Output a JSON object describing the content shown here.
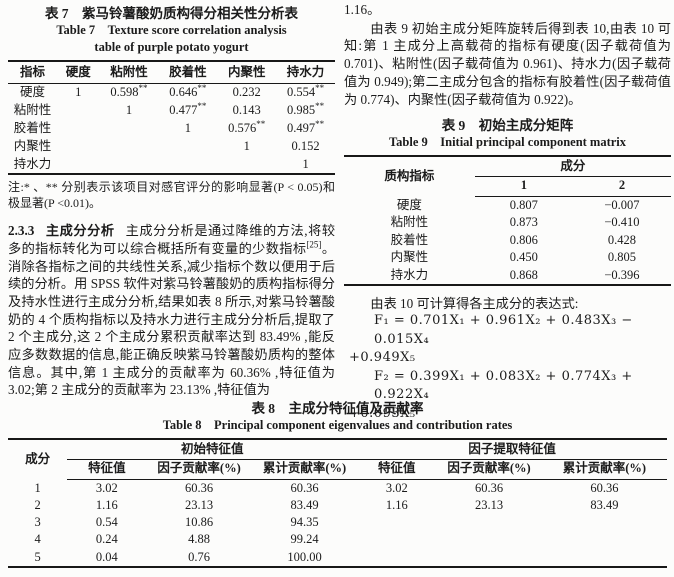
{
  "table7": {
    "title_zh": "表 7　紫马铃薯酸奶质构得分相关性分析表",
    "title_en_line1": "Table 7　Texture score correlation analysis",
    "title_en_line2": "table of purple potato yogurt",
    "headers": [
      "指标",
      "硬度",
      "粘附性",
      "胶着性",
      "内聚性",
      "持水力"
    ],
    "rows": [
      [
        "硬度",
        "1",
        "0.598**",
        "0.646**",
        "0.232",
        "0.554**"
      ],
      [
        "粘附性",
        "",
        "1",
        "0.477**",
        "0.143",
        "0.985**"
      ],
      [
        "胶着性",
        "",
        "",
        "1",
        "0.576**",
        "0.497**"
      ],
      [
        "内聚性",
        "",
        "",
        "",
        "1",
        "0.152"
      ],
      [
        "持水力",
        "",
        "",
        "",
        "",
        "1"
      ]
    ],
    "note": "注:* 、** 分别表示该项目对感官评分的影响显著(P < 0.05)和极显著(P <0.01)。"
  },
  "left_column": {
    "section_no": "2.3.3",
    "section_heading": "主成分分析",
    "para_body1": "主成分分析是通过降维的方法,将较多的指标转化为可以综合概括所有变量的少数指标",
    "para_ref": "[25]",
    "para_body2": "。消除各指标之间的共线性关系,减少指标个数以便用于后续的分析。用 SPSS 软件对紫马铃薯酸奶的质构指标得分及持水性进行主成分分析,结果如表 8 所示,对紫马铃薯酸奶的 4 个质构指标以及持水力进行主成分分析后,提取了 2 个主成分,这 2 个主成分累积贡献率达到 83.49% ,能反应多数数据的信息,能正确反映紫马铃薯酸奶质构的整体信息。其中,第 1 主成分的贡献率为 60.36% ,特征值为 3.02;第 2 主成分的贡献率为 23.13% ,特征值为"
  },
  "right_column": {
    "carryover": "1.16。",
    "paragraph": "由表 9 初始主成分矩阵旋转后得到表 10,由表 10 可知:第 1 主成分上高载荷的指标有硬度(因子载荷值为 0.701)、粘附性(因子载荷值为 0.961)、持水力(因子载荷值为 0.949);第二主成分包含的指标有胶着性(因子载荷值为 0.774)、内聚性(因子载荷值为 0.922)。",
    "expr_intro": "由表 10 可计算得各主成分的表达式:",
    "f1_line1": "F₁ = 0.701X₁ + 0.961X₂ + 0.483X₃ − 0.015X₄",
    "f1_line2": "+0.949X₅",
    "f2_line1": "F₂ = 0.399X₁ + 0.083X₂ + 0.774X₃ + 0.922X₄",
    "f2_line2": "+0.093X₅"
  },
  "table9": {
    "title_zh": "表 9　初始主成分矩阵",
    "title_en": "Table 9　Initial principal component matrix",
    "rowhead_label": "质构指标",
    "group_label": "成分",
    "sub_headers": [
      "1",
      "2"
    ],
    "rows": [
      [
        "硬度",
        "0.807",
        "−0.007"
      ],
      [
        "粘附性",
        "0.873",
        "−0.410"
      ],
      [
        "胶着性",
        "0.806",
        "0.428"
      ],
      [
        "内聚性",
        "0.450",
        "0.805"
      ],
      [
        "持水力",
        "0.868",
        "−0.396"
      ]
    ]
  },
  "table8": {
    "title_zh": "表 8　主成分特征值及贡献率",
    "title_en": "Table 8　Principal component eigenvalues and contribution rates",
    "col0_label": "成分",
    "group1_label": "初始特征值",
    "group2_label": "因子提取特征值",
    "sub_headers": [
      "特征值",
      "因子贡献率(%)",
      "累计贡献率(%)",
      "特征值",
      "因子贡献率(%)",
      "累计贡献率(%)"
    ],
    "rows": [
      [
        "1",
        "3.02",
        "60.36",
        "60.36",
        "3.02",
        "60.36",
        "60.36"
      ],
      [
        "2",
        "1.16",
        "23.13",
        "83.49",
        "1.16",
        "23.13",
        "83.49"
      ],
      [
        "3",
        "0.54",
        "10.86",
        "94.35",
        "",
        "",
        ""
      ],
      [
        "4",
        "0.24",
        "4.88",
        "99.24",
        "",
        "",
        ""
      ],
      [
        "5",
        "0.04",
        "0.76",
        "100.00",
        "",
        "",
        ""
      ]
    ]
  }
}
